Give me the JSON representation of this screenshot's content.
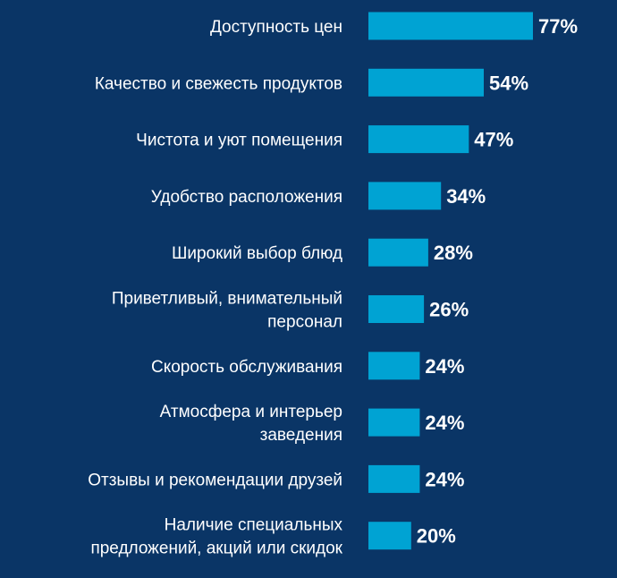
{
  "chart_data": {
    "type": "bar",
    "orientation": "horizontal",
    "categories": [
      [
        "Доступность цен"
      ],
      [
        "Качество и свежесть продуктов"
      ],
      [
        "Чистота и уют помещения"
      ],
      [
        "Удобство расположения"
      ],
      [
        "Широкий выбор блюд"
      ],
      [
        "Приветливый, внимательный",
        "персонал"
      ],
      [
        "Скорость обслуживания"
      ],
      [
        "Атмосфера и интерьер",
        "заведения"
      ],
      [
        "Отзывы и рекомендации друзей"
      ],
      [
        "Наличие специальных",
        "предложений, акций или скидок"
      ]
    ],
    "values": [
      77,
      54,
      47,
      34,
      28,
      26,
      24,
      24,
      24,
      20
    ],
    "value_labels": [
      "77%",
      "54%",
      "47%",
      "34%",
      "28%",
      "26%",
      "24%",
      "24%",
      "24%",
      "20%"
    ],
    "unit": "%",
    "xlim": [
      0,
      77
    ],
    "grid": false,
    "legend": "none",
    "colors": {
      "background": "#0a3566",
      "bar": "#00a3d3",
      "text": "#ffffff"
    }
  }
}
